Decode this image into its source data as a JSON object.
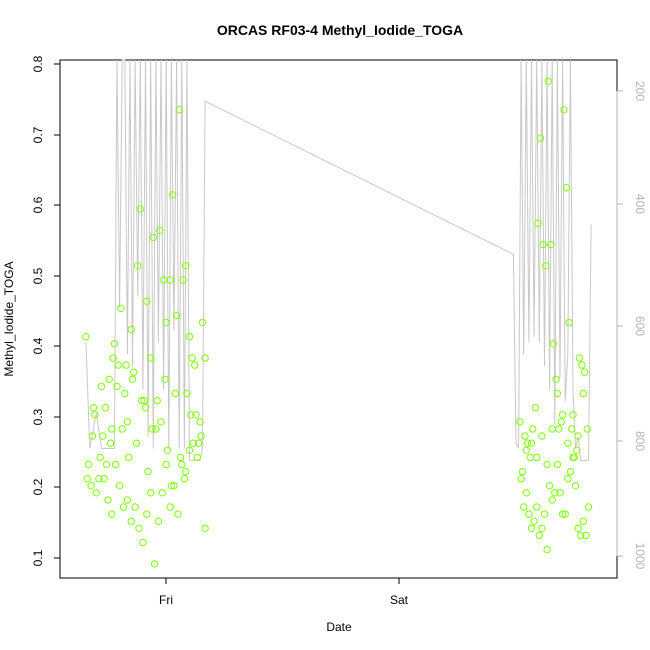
{
  "chart_data": {
    "type": "scatter",
    "title": "ORCAS RF03-4 Methyl_Iodide_TOGA",
    "xlabel": "Date",
    "ylabel": "Methyl_Iodide_TOGA",
    "x_ticks": [
      "Fri",
      "Sat"
    ],
    "y_ticks": [
      "0.1",
      "0.2",
      "0.3",
      "0.4",
      "0.5",
      "0.6",
      "0.7",
      "0.8"
    ],
    "ylim": [
      0.08,
      0.81
    ],
    "right_axis": {
      "ticks": [
        "200",
        "400",
        "600",
        "800",
        "1000"
      ],
      "range_reversed": [
        140,
        1020
      ],
      "color": "#b4b4b4"
    },
    "colors": {
      "points": "#80ff00",
      "altitude_line": "#c8c8c8"
    },
    "series": [
      {
        "marker": "open-circle",
        "values": [
          [
            0.2,
            0.42
          ],
          [
            0.22,
            0.24
          ],
          [
            0.25,
            0.28
          ],
          [
            0.27,
            0.31
          ],
          [
            0.3,
            0.22
          ],
          [
            0.32,
            0.35
          ],
          [
            0.35,
            0.32
          ],
          [
            0.38,
            0.36
          ],
          [
            0.4,
            0.29
          ],
          [
            0.42,
            0.41
          ],
          [
            0.45,
            0.38
          ],
          [
            0.47,
            0.46
          ],
          [
            0.5,
            0.34
          ],
          [
            0.52,
            0.3
          ],
          [
            0.55,
            0.43
          ],
          [
            0.57,
            0.37
          ],
          [
            0.6,
            0.52
          ],
          [
            0.62,
            0.6
          ],
          [
            0.65,
            0.33
          ],
          [
            0.67,
            0.47
          ],
          [
            0.7,
            0.39
          ],
          [
            0.72,
            0.56
          ],
          [
            0.75,
            0.33
          ],
          [
            0.77,
            0.57
          ],
          [
            0.8,
            0.5
          ],
          [
            0.82,
            0.44
          ],
          [
            0.85,
            0.5
          ],
          [
            0.87,
            0.62
          ],
          [
            0.9,
            0.45
          ],
          [
            0.92,
            0.74
          ],
          [
            0.95,
            0.5
          ],
          [
            0.97,
            0.52
          ],
          [
            1.0,
            0.42
          ],
          [
            1.02,
            0.39
          ],
          [
            1.05,
            0.31
          ],
          [
            1.07,
            0.27
          ],
          [
            1.1,
            0.44
          ],
          [
            1.12,
            0.39
          ],
          [
            0.21,
            0.22
          ],
          [
            0.24,
            0.21
          ],
          [
            0.28,
            0.2
          ],
          [
            0.31,
            0.25
          ],
          [
            0.34,
            0.22
          ],
          [
            0.37,
            0.19
          ],
          [
            0.4,
            0.17
          ],
          [
            0.43,
            0.24
          ],
          [
            0.46,
            0.21
          ],
          [
            0.49,
            0.18
          ],
          [
            0.52,
            0.19
          ],
          [
            0.55,
            0.16
          ],
          [
            0.58,
            0.18
          ],
          [
            0.61,
            0.15
          ],
          [
            0.64,
            0.13
          ],
          [
            0.67,
            0.17
          ],
          [
            0.7,
            0.2
          ],
          [
            0.73,
            0.1
          ],
          [
            0.76,
            0.16
          ],
          [
            0.79,
            0.2
          ],
          [
            0.82,
            0.24
          ],
          [
            0.85,
            0.18
          ],
          [
            0.88,
            0.21
          ],
          [
            0.91,
            0.17
          ],
          [
            0.94,
            0.24
          ],
          [
            0.97,
            0.23
          ],
          [
            1.0,
            0.26
          ],
          [
            1.03,
            0.27
          ],
          [
            1.06,
            0.25
          ],
          [
            1.09,
            0.28
          ],
          [
            1.12,
            0.15
          ],
          [
            0.26,
            0.32
          ],
          [
            0.33,
            0.28
          ],
          [
            0.39,
            0.27
          ],
          [
            0.44,
            0.35
          ],
          [
            0.48,
            0.29
          ],
          [
            0.53,
            0.25
          ],
          [
            0.59,
            0.27
          ],
          [
            0.63,
            0.33
          ],
          [
            0.68,
            0.23
          ],
          [
            0.74,
            0.29
          ],
          [
            0.78,
            0.3
          ],
          [
            0.83,
            0.26
          ],
          [
            0.89,
            0.34
          ],
          [
            0.93,
            0.25
          ],
          [
            0.98,
            0.34
          ],
          [
            1.04,
            0.38
          ],
          [
            1.08,
            0.3
          ],
          [
            0.36,
            0.24
          ],
          [
            0.41,
            0.39
          ],
          [
            0.51,
            0.38
          ],
          [
            0.56,
            0.36
          ],
          [
            0.66,
            0.32
          ],
          [
            0.71,
            0.29
          ],
          [
            0.81,
            0.36
          ],
          [
            0.86,
            0.21
          ],
          [
            0.96,
            0.22
          ],
          [
            1.01,
            0.31
          ],
          [
            3.55,
            0.3
          ],
          [
            3.57,
            0.23
          ],
          [
            3.59,
            0.28
          ],
          [
            3.61,
            0.27
          ],
          [
            3.63,
            0.25
          ],
          [
            3.65,
            0.29
          ],
          [
            3.67,
            0.32
          ],
          [
            3.69,
            0.58
          ],
          [
            3.71,
            0.7
          ],
          [
            3.73,
            0.55
          ],
          [
            3.75,
            0.52
          ],
          [
            3.77,
            0.78
          ],
          [
            3.79,
            0.55
          ],
          [
            3.81,
            0.41
          ],
          [
            3.83,
            0.36
          ],
          [
            3.85,
            0.29
          ],
          [
            3.87,
            0.3
          ],
          [
            3.89,
            0.74
          ],
          [
            3.91,
            0.63
          ],
          [
            3.93,
            0.44
          ],
          [
            3.95,
            0.29
          ],
          [
            3.97,
            0.25
          ],
          [
            3.99,
            0.26
          ],
          [
            4.01,
            0.39
          ],
          [
            4.03,
            0.38
          ],
          [
            4.05,
            0.37
          ],
          [
            4.07,
            0.29
          ],
          [
            3.56,
            0.22
          ],
          [
            3.58,
            0.18
          ],
          [
            3.6,
            0.2
          ],
          [
            3.62,
            0.17
          ],
          [
            3.64,
            0.15
          ],
          [
            3.66,
            0.16
          ],
          [
            3.68,
            0.18
          ],
          [
            3.7,
            0.14
          ],
          [
            3.72,
            0.15
          ],
          [
            3.74,
            0.17
          ],
          [
            3.76,
            0.12
          ],
          [
            3.78,
            0.21
          ],
          [
            3.8,
            0.19
          ],
          [
            3.82,
            0.2
          ],
          [
            3.84,
            0.24
          ],
          [
            3.86,
            0.2
          ],
          [
            3.88,
            0.17
          ],
          [
            3.9,
            0.17
          ],
          [
            3.92,
            0.22
          ],
          [
            3.94,
            0.23
          ],
          [
            3.96,
            0.25
          ],
          [
            3.98,
            0.21
          ],
          [
            4.0,
            0.15
          ],
          [
            4.02,
            0.14
          ],
          [
            4.04,
            0.16
          ],
          [
            4.06,
            0.14
          ],
          [
            4.08,
            0.18
          ],
          [
            3.6,
            0.26
          ],
          [
            3.64,
            0.27
          ],
          [
            3.68,
            0.25
          ],
          [
            3.72,
            0.28
          ],
          [
            3.76,
            0.24
          ],
          [
            3.8,
            0.29
          ],
          [
            3.84,
            0.34
          ],
          [
            3.88,
            0.31
          ],
          [
            3.92,
            0.27
          ],
          [
            3.96,
            0.31
          ],
          [
            4.0,
            0.28
          ],
          [
            4.04,
            0.34
          ]
        ]
      }
    ],
    "altitude": [
      [
        0.2,
        620
      ],
      [
        0.23,
        800
      ],
      [
        0.28,
        740
      ],
      [
        0.32,
        800
      ],
      [
        0.42,
        800
      ],
      [
        0.44,
        120
      ],
      [
        0.46,
        560
      ],
      [
        0.48,
        120
      ],
      [
        0.5,
        120
      ],
      [
        0.52,
        640
      ],
      [
        0.54,
        120
      ],
      [
        0.56,
        660
      ],
      [
        0.58,
        120
      ],
      [
        0.6,
        540
      ],
      [
        0.62,
        120
      ],
      [
        0.64,
        700
      ],
      [
        0.66,
        120
      ],
      [
        0.68,
        780
      ],
      [
        0.7,
        120
      ],
      [
        0.72,
        800
      ],
      [
        0.74,
        120
      ],
      [
        0.76,
        620
      ],
      [
        0.78,
        120
      ],
      [
        0.8,
        700
      ],
      [
        0.82,
        120
      ],
      [
        0.84,
        800
      ],
      [
        0.86,
        120
      ],
      [
        0.88,
        600
      ],
      [
        0.9,
        120
      ],
      [
        0.92,
        800
      ],
      [
        0.94,
        120
      ],
      [
        0.96,
        800
      ],
      [
        0.98,
        120
      ],
      [
        1.0,
        820
      ],
      [
        1.02,
        820
      ],
      [
        1.08,
        820
      ],
      [
        1.1,
        800
      ],
      [
        1.12,
        210
      ],
      [
        3.5,
        470
      ],
      [
        3.52,
        790
      ],
      [
        3.54,
        800
      ],
      [
        3.56,
        120
      ],
      [
        3.58,
        640
      ],
      [
        3.6,
        120
      ],
      [
        3.62,
        620
      ],
      [
        3.64,
        120
      ],
      [
        3.66,
        610
      ],
      [
        3.68,
        120
      ],
      [
        3.7,
        620
      ],
      [
        3.72,
        120
      ],
      [
        3.74,
        660
      ],
      [
        3.76,
        120
      ],
      [
        3.78,
        700
      ],
      [
        3.8,
        120
      ],
      [
        3.82,
        760
      ],
      [
        3.84,
        120
      ],
      [
        3.86,
        680
      ],
      [
        3.88,
        120
      ],
      [
        3.9,
        720
      ],
      [
        3.92,
        640
      ],
      [
        3.94,
        120
      ],
      [
        3.96,
        700
      ],
      [
        3.98,
        800
      ],
      [
        4.0,
        780
      ],
      [
        4.02,
        820
      ],
      [
        4.04,
        820
      ],
      [
        4.06,
        820
      ],
      [
        4.08,
        820
      ],
      [
        4.1,
        420
      ]
    ]
  }
}
